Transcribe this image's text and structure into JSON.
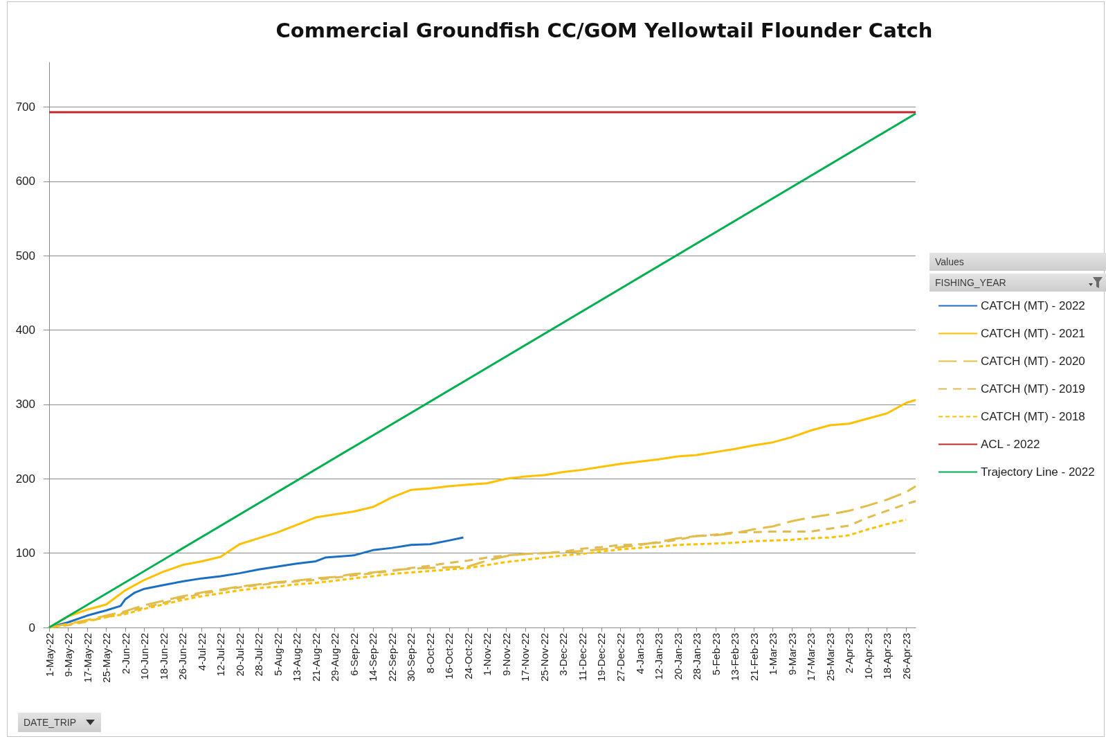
{
  "chart_data": {
    "type": "line",
    "title": "Commercial Groundfish CC/GOM Yellowtail Flounder Catch",
    "legend_title": "FISHING_YEAR",
    "annotations": [
      "Values",
      "DATE_TRIP"
    ],
    "x": [
      "2022-05-01",
      "2022-05-09",
      "2022-05-17",
      "2022-05-25",
      "2022-06-02",
      "2022-06-10",
      "2022-06-18",
      "2022-06-26",
      "2022-07-04",
      "2022-07-12",
      "2022-07-20",
      "2022-07-28",
      "2022-08-05",
      "2022-08-13",
      "2022-08-21",
      "2022-08-29",
      "2022-09-06",
      "2022-09-14",
      "2022-09-22",
      "2022-09-30",
      "2022-10-08",
      "2022-10-16",
      "2022-10-24",
      "2022-11-01",
      "2022-11-09",
      "2022-11-17",
      "2022-11-25",
      "2022-12-03",
      "2022-12-11",
      "2022-12-19",
      "2022-12-27",
      "2023-01-04",
      "2023-01-12",
      "2023-01-20",
      "2023-01-28",
      "2023-02-05",
      "2023-02-13",
      "2023-02-21",
      "2023-03-01",
      "2023-03-09",
      "2023-03-17",
      "2023-03-25",
      "2023-04-02",
      "2023-04-10",
      "2023-04-18",
      "2023-04-26",
      "2023-04-30"
    ],
    "series": [
      {
        "name": "CATCH (MT) - 2022",
        "color": "#1a6fc4",
        "x": [
          "2022-05-01",
          "2022-05-09",
          "2022-05-17",
          "2022-05-25",
          "2022-05-31",
          "2022-06-02",
          "2022-06-06",
          "2022-06-10",
          "2022-06-18",
          "2022-06-26",
          "2022-07-04",
          "2022-07-12",
          "2022-07-20",
          "2022-07-28",
          "2022-08-05",
          "2022-08-13",
          "2022-08-21",
          "2022-08-25",
          "2022-09-06",
          "2022-09-14",
          "2022-09-22",
          "2022-09-30",
          "2022-10-08",
          "2022-10-16",
          "2022-10-22"
        ],
        "values": [
          0,
          7,
          16,
          23,
          29,
          38,
          47,
          52,
          57,
          62,
          66,
          69,
          73,
          78,
          82,
          86,
          89,
          94,
          97,
          104,
          107,
          111,
          112,
          117,
          121
        ]
      },
      {
        "name": "CATCH (MT) - 2021",
        "color": "#ffc000",
        "values": [
          0,
          15,
          24,
          31,
          50,
          64,
          75,
          84,
          89,
          95,
          112,
          120,
          128,
          138,
          148,
          152,
          156,
          162,
          175,
          185,
          187,
          190,
          192,
          194,
          200,
          203,
          205,
          209,
          212,
          216,
          220,
          223,
          226,
          230,
          232,
          236,
          240,
          245,
          249,
          256,
          265,
          272,
          274,
          281,
          288,
          302,
          306
        ]
      },
      {
        "name": "CATCH (MT) - 2020",
        "color": "#e3bd45",
        "line_style": "longdash",
        "values": [
          0,
          5,
          10,
          16,
          22,
          30,
          36,
          42,
          47,
          51,
          55,
          58,
          61,
          63,
          66,
          68,
          72,
          74,
          77,
          79,
          80,
          81,
          82,
          90,
          96,
          99,
          100,
          101,
          103,
          105,
          108,
          111,
          115,
          120,
          123,
          124,
          127,
          132,
          136,
          143,
          148,
          152,
          157,
          164,
          172,
          182,
          190
        ]
      },
      {
        "name": "CATCH (MT) - 2019",
        "color": "#e0bb52",
        "line_style": "dashed",
        "values": [
          0,
          3,
          8,
          14,
          20,
          27,
          33,
          40,
          45,
          50,
          54,
          57,
          60,
          62,
          64,
          67,
          70,
          73,
          76,
          80,
          83,
          87,
          90,
          94,
          97,
          99,
          100,
          102,
          106,
          108,
          111,
          112,
          114,
          118,
          123,
          125,
          128,
          128,
          129,
          129,
          129,
          133,
          137,
          148,
          157,
          166,
          170
        ]
      },
      {
        "name": "CATCH (MT) - 2018",
        "color": "#ffc000",
        "line_style": "dotted",
        "values": [
          0,
          4,
          9,
          14,
          18,
          25,
          31,
          37,
          42,
          46,
          50,
          53,
          55,
          58,
          60,
          63,
          66,
          69,
          72,
          74,
          76,
          78,
          80,
          84,
          88,
          91,
          94,
          97,
          99,
          102,
          105,
          107,
          109,
          111,
          112,
          113,
          114,
          116,
          117,
          118,
          120,
          121,
          124,
          132,
          139,
          145,
          null
        ]
      },
      {
        "name": "ACL - 2022",
        "color": "#c0282d",
        "x": [
          "2022-05-01",
          "2023-04-30"
        ],
        "values": [
          693,
          693
        ]
      },
      {
        "name": "Trajectory Line - 2022",
        "color": "#00b050",
        "x": [
          "2022-05-01",
          "2023-04-30"
        ],
        "values": [
          0,
          691
        ]
      }
    ],
    "xlim": [
      "2022-05-01",
      "2023-04-30"
    ],
    "xticks": [
      {
        "value": "2022-05-01",
        "label": "1-May-22"
      },
      {
        "value": "2022-05-09",
        "label": "9-May-22"
      },
      {
        "value": "2022-05-17",
        "label": "17-May-22"
      },
      {
        "value": "2022-05-25",
        "label": "25-May-22"
      },
      {
        "value": "2022-06-02",
        "label": "2-Jun-22"
      },
      {
        "value": "2022-06-10",
        "label": "10-Jun-22"
      },
      {
        "value": "2022-06-18",
        "label": "18-Jun-22"
      },
      {
        "value": "2022-06-26",
        "label": "26-Jun-22"
      },
      {
        "value": "2022-07-04",
        "label": "4-Jul-22"
      },
      {
        "value": "2022-07-12",
        "label": "12-Jul-22"
      },
      {
        "value": "2022-07-20",
        "label": "20-Jul-22"
      },
      {
        "value": "2022-07-28",
        "label": "28-Jul-22"
      },
      {
        "value": "2022-08-05",
        "label": "5-Aug-22"
      },
      {
        "value": "2022-08-13",
        "label": "13-Aug-22"
      },
      {
        "value": "2022-08-21",
        "label": "21-Aug-22"
      },
      {
        "value": "2022-08-29",
        "label": "29-Aug-22"
      },
      {
        "value": "2022-09-06",
        "label": "6-Sep-22"
      },
      {
        "value": "2022-09-14",
        "label": "14-Sep-22"
      },
      {
        "value": "2022-09-22",
        "label": "22-Sep-22"
      },
      {
        "value": "2022-09-30",
        "label": "30-Sep-22"
      },
      {
        "value": "2022-10-08",
        "label": "8-Oct-22"
      },
      {
        "value": "2022-10-16",
        "label": "16-Oct-22"
      },
      {
        "value": "2022-10-24",
        "label": "24-Oct-22"
      },
      {
        "value": "2022-11-01",
        "label": "1-Nov-22"
      },
      {
        "value": "2022-11-09",
        "label": "9-Nov-22"
      },
      {
        "value": "2022-11-17",
        "label": "17-Nov-22"
      },
      {
        "value": "2022-11-25",
        "label": "25-Nov-22"
      },
      {
        "value": "2022-12-03",
        "label": "3-Dec-22"
      },
      {
        "value": "2022-12-11",
        "label": "11-Dec-22"
      },
      {
        "value": "2022-12-19",
        "label": "19-Dec-22"
      },
      {
        "value": "2022-12-27",
        "label": "27-Dec-22"
      },
      {
        "value": "2023-01-04",
        "label": "4-Jan-23"
      },
      {
        "value": "2023-01-12",
        "label": "12-Jan-23"
      },
      {
        "value": "2023-01-20",
        "label": "20-Jan-23"
      },
      {
        "value": "2023-01-28",
        "label": "28-Jan-23"
      },
      {
        "value": "2023-02-05",
        "label": "5-Feb-23"
      },
      {
        "value": "2023-02-13",
        "label": "13-Feb-23"
      },
      {
        "value": "2023-02-21",
        "label": "21-Feb-23"
      },
      {
        "value": "2023-03-01",
        "label": "1-Mar-23"
      },
      {
        "value": "2023-03-09",
        "label": "9-Mar-23"
      },
      {
        "value": "2023-03-17",
        "label": "17-Mar-23"
      },
      {
        "value": "2023-03-25",
        "label": "25-Mar-23"
      },
      {
        "value": "2023-04-02",
        "label": "2-Apr-23"
      },
      {
        "value": "2023-04-10",
        "label": "10-Apr-23"
      },
      {
        "value": "2023-04-18",
        "label": "18-Apr-23"
      },
      {
        "value": "2023-04-26",
        "label": "26-Apr-23"
      }
    ],
    "ylim": [
      0,
      760
    ],
    "yticks": [
      0,
      100,
      200,
      300,
      400,
      500,
      600,
      700
    ],
    "grid": "y",
    "legend": "right",
    "line_style": "solid"
  }
}
